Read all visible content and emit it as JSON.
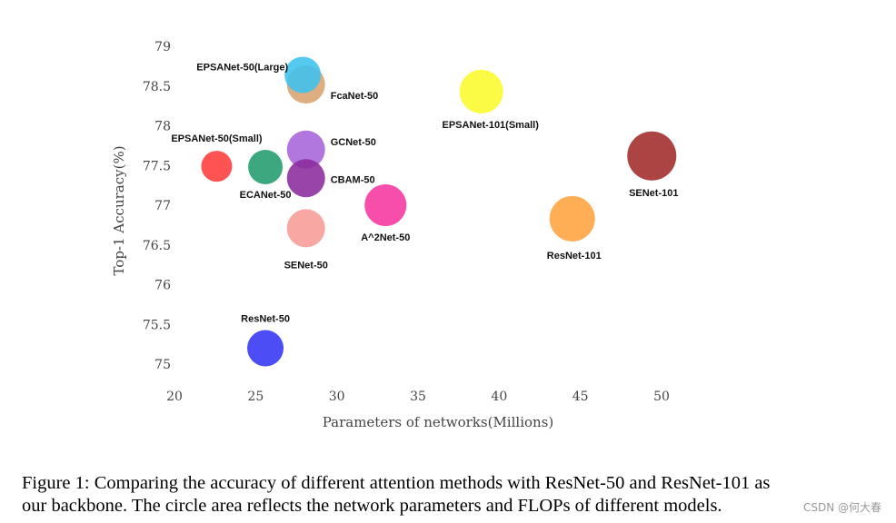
{
  "chart_data": {
    "type": "scatter",
    "xlabel": "Parameters of networks(Millions)",
    "ylabel": "Top-1 Accuracy(%)",
    "xlim": [
      20,
      50
    ],
    "ylim": [
      75,
      79
    ],
    "x_ticks": [
      "20",
      "25",
      "30",
      "35",
      "40",
      "45",
      "50"
    ],
    "y_ticks": [
      "75",
      "75.5",
      "76",
      "76.5",
      "77",
      "77.5",
      "78",
      "78.5",
      "79"
    ],
    "points": [
      {
        "name": "EPSANet-50(Small)",
        "x": 22.6,
        "y": 77.49,
        "color": "#ff3b3b"
      },
      {
        "name": "ECANet-50",
        "x": 25.6,
        "y": 77.48,
        "color": "#229c6e"
      },
      {
        "name": "FcaNet-50",
        "x": 28.1,
        "y": 78.52,
        "color": "#d9a36e"
      },
      {
        "name": "EPSANet-50(Large)",
        "x": 27.9,
        "y": 78.64,
        "color": "#3ec2ee"
      },
      {
        "name": "GCNet-50",
        "x": 28.1,
        "y": 77.7,
        "color": "#a764d9"
      },
      {
        "name": "CBAM-50",
        "x": 28.1,
        "y": 77.34,
        "color": "#8b2a9c"
      },
      {
        "name": "SENet-50",
        "x": 28.1,
        "y": 76.71,
        "color": "#f79b96"
      },
      {
        "name": "A^2Net-50",
        "x": 33.0,
        "y": 77.0,
        "color": "#f5369e"
      },
      {
        "name": "EPSANet-101(Small)",
        "x": 38.9,
        "y": 78.43,
        "color": "#fafa2b"
      },
      {
        "name": "ResNet-101",
        "x": 44.5,
        "y": 76.83,
        "color": "#ffa33f"
      },
      {
        "name": "SENet-101",
        "x": 49.4,
        "y": 77.62,
        "color": "#a02a2a"
      },
      {
        "name": "ResNet-50",
        "x": 25.6,
        "y": 75.2,
        "color": "#3434f5"
      }
    ]
  },
  "caption": {
    "line1": "Figure 1: Comparing the accuracy of different attention methods with ResNet-50 and ResNet-101 as",
    "line2": "our backbone. The circle area reflects the network parameters and FLOPs of different models."
  },
  "watermark": "CSDN @何大春"
}
